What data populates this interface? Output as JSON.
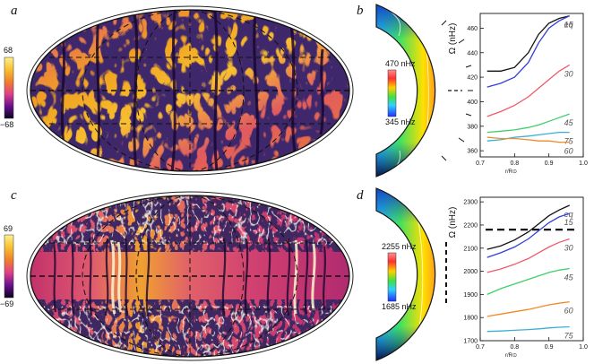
{
  "panels": {
    "a": {
      "letter": "a",
      "colorbar": {
        "max_label": "68",
        "min_label": "−68"
      }
    },
    "b": {
      "letter": "b",
      "colorbar": {
        "max_label": "470 nHz",
        "min_label": "345 nHz"
      }
    },
    "c": {
      "letter": "c",
      "colorbar": {
        "max_label": "69",
        "min_label": "−69"
      }
    },
    "d": {
      "letter": "d",
      "colorbar": {
        "max_label": "2255 nHz",
        "min_label": "1685 nHz"
      }
    }
  },
  "chart_data": [
    {
      "type": "line",
      "panel": "b",
      "ylabel": "Ω (nHz)",
      "xlabel": "r/R⊙",
      "xlim": [
        0.7,
        1.0
      ],
      "ylim": [
        355,
        472
      ],
      "xticks": [
        "0.7",
        "0.8",
        "0.9",
        "1.0"
      ],
      "yticks": [
        "360",
        "380",
        "400",
        "420",
        "440",
        "460"
      ],
      "series": [
        {
          "name": "eq",
          "color": "#111111",
          "x": [
            0.72,
            0.76,
            0.8,
            0.84,
            0.87,
            0.9,
            0.93,
            0.96
          ],
          "y": [
            425,
            425,
            428,
            440,
            455,
            464,
            468,
            470
          ]
        },
        {
          "name": "15",
          "color": "#3340d8",
          "x": [
            0.72,
            0.76,
            0.8,
            0.84,
            0.87,
            0.9,
            0.93,
            0.96
          ],
          "y": [
            412,
            415,
            420,
            432,
            448,
            460,
            466,
            470
          ]
        },
        {
          "name": "30",
          "color": "#f05a6a",
          "x": [
            0.72,
            0.76,
            0.8,
            0.84,
            0.87,
            0.9,
            0.93,
            0.96
          ],
          "y": [
            388,
            392,
            397,
            404,
            411,
            418,
            425,
            430
          ]
        },
        {
          "name": "45",
          "color": "#3fcf6a",
          "x": [
            0.72,
            0.76,
            0.8,
            0.84,
            0.87,
            0.9,
            0.93,
            0.96
          ],
          "y": [
            375,
            376,
            377,
            379,
            381,
            384,
            387,
            390
          ]
        },
        {
          "name": "75",
          "color": "#3ab0d8",
          "x": [
            0.72,
            0.76,
            0.8,
            0.84,
            0.87,
            0.9,
            0.93,
            0.96
          ],
          "y": [
            368,
            369,
            371,
            372,
            373,
            374,
            375,
            375
          ]
        },
        {
          "name": "60",
          "color": "#f08a2a",
          "x": [
            0.72,
            0.76,
            0.8,
            0.84,
            0.87,
            0.9,
            0.93,
            0.96
          ],
          "y": [
            371,
            370,
            370,
            369,
            368,
            368,
            367,
            367
          ]
        }
      ]
    },
    {
      "type": "line",
      "panel": "d",
      "ylabel": "Ω (nHz)",
      "xlabel": "r/R⊙",
      "xlim": [
        0.7,
        1.0
      ],
      "ylim": [
        1700,
        2320
      ],
      "xticks": [
        "0.7",
        "0.8",
        "0.9",
        "1.0"
      ],
      "yticks": [
        "1700",
        "1800",
        "1900",
        "2000",
        "2100",
        "2200",
        "2300"
      ],
      "reference_level": 2180,
      "series": [
        {
          "name": "eq",
          "color": "#111111",
          "x": [
            0.72,
            0.76,
            0.8,
            0.84,
            0.87,
            0.9,
            0.93,
            0.96
          ],
          "y": [
            2095,
            2110,
            2135,
            2170,
            2205,
            2240,
            2265,
            2285
          ]
        },
        {
          "name": "15",
          "color": "#3340d8",
          "x": [
            0.72,
            0.76,
            0.8,
            0.84,
            0.87,
            0.9,
            0.93,
            0.96
          ],
          "y": [
            2060,
            2080,
            2105,
            2140,
            2175,
            2210,
            2235,
            2250
          ]
        },
        {
          "name": "30",
          "color": "#f05a6a",
          "x": [
            0.72,
            0.76,
            0.8,
            0.84,
            0.87,
            0.9,
            0.93,
            0.96
          ],
          "y": [
            1995,
            2010,
            2030,
            2055,
            2080,
            2105,
            2125,
            2140
          ]
        },
        {
          "name": "45",
          "color": "#3fcf6a",
          "x": [
            0.72,
            0.76,
            0.8,
            0.84,
            0.87,
            0.9,
            0.93,
            0.96
          ],
          "y": [
            1900,
            1925,
            1945,
            1965,
            1980,
            1995,
            2005,
            2012
          ]
        },
        {
          "name": "60",
          "color": "#f08a2a",
          "x": [
            0.72,
            0.76,
            0.8,
            0.84,
            0.87,
            0.9,
            0.93,
            0.96
          ],
          "y": [
            1805,
            1815,
            1825,
            1835,
            1845,
            1855,
            1862,
            1868
          ]
        },
        {
          "name": "75",
          "color": "#3ab0d8",
          "x": [
            0.72,
            0.76,
            0.8,
            0.84,
            0.87,
            0.9,
            0.93,
            0.96
          ],
          "y": [
            1740,
            1742,
            1745,
            1748,
            1751,
            1755,
            1758,
            1760
          ]
        }
      ]
    }
  ],
  "colors": {
    "map_palette": [
      "#0a0520",
      "#4a0a7a",
      "#a01a9a",
      "#e0408a",
      "#f0802a",
      "#f8c030",
      "#fff090"
    ],
    "rotation_palette": [
      "#ff9090",
      "#ff3030",
      "#ffd000",
      "#40e040",
      "#30d0ff",
      "#2040ff",
      "#000040"
    ]
  }
}
